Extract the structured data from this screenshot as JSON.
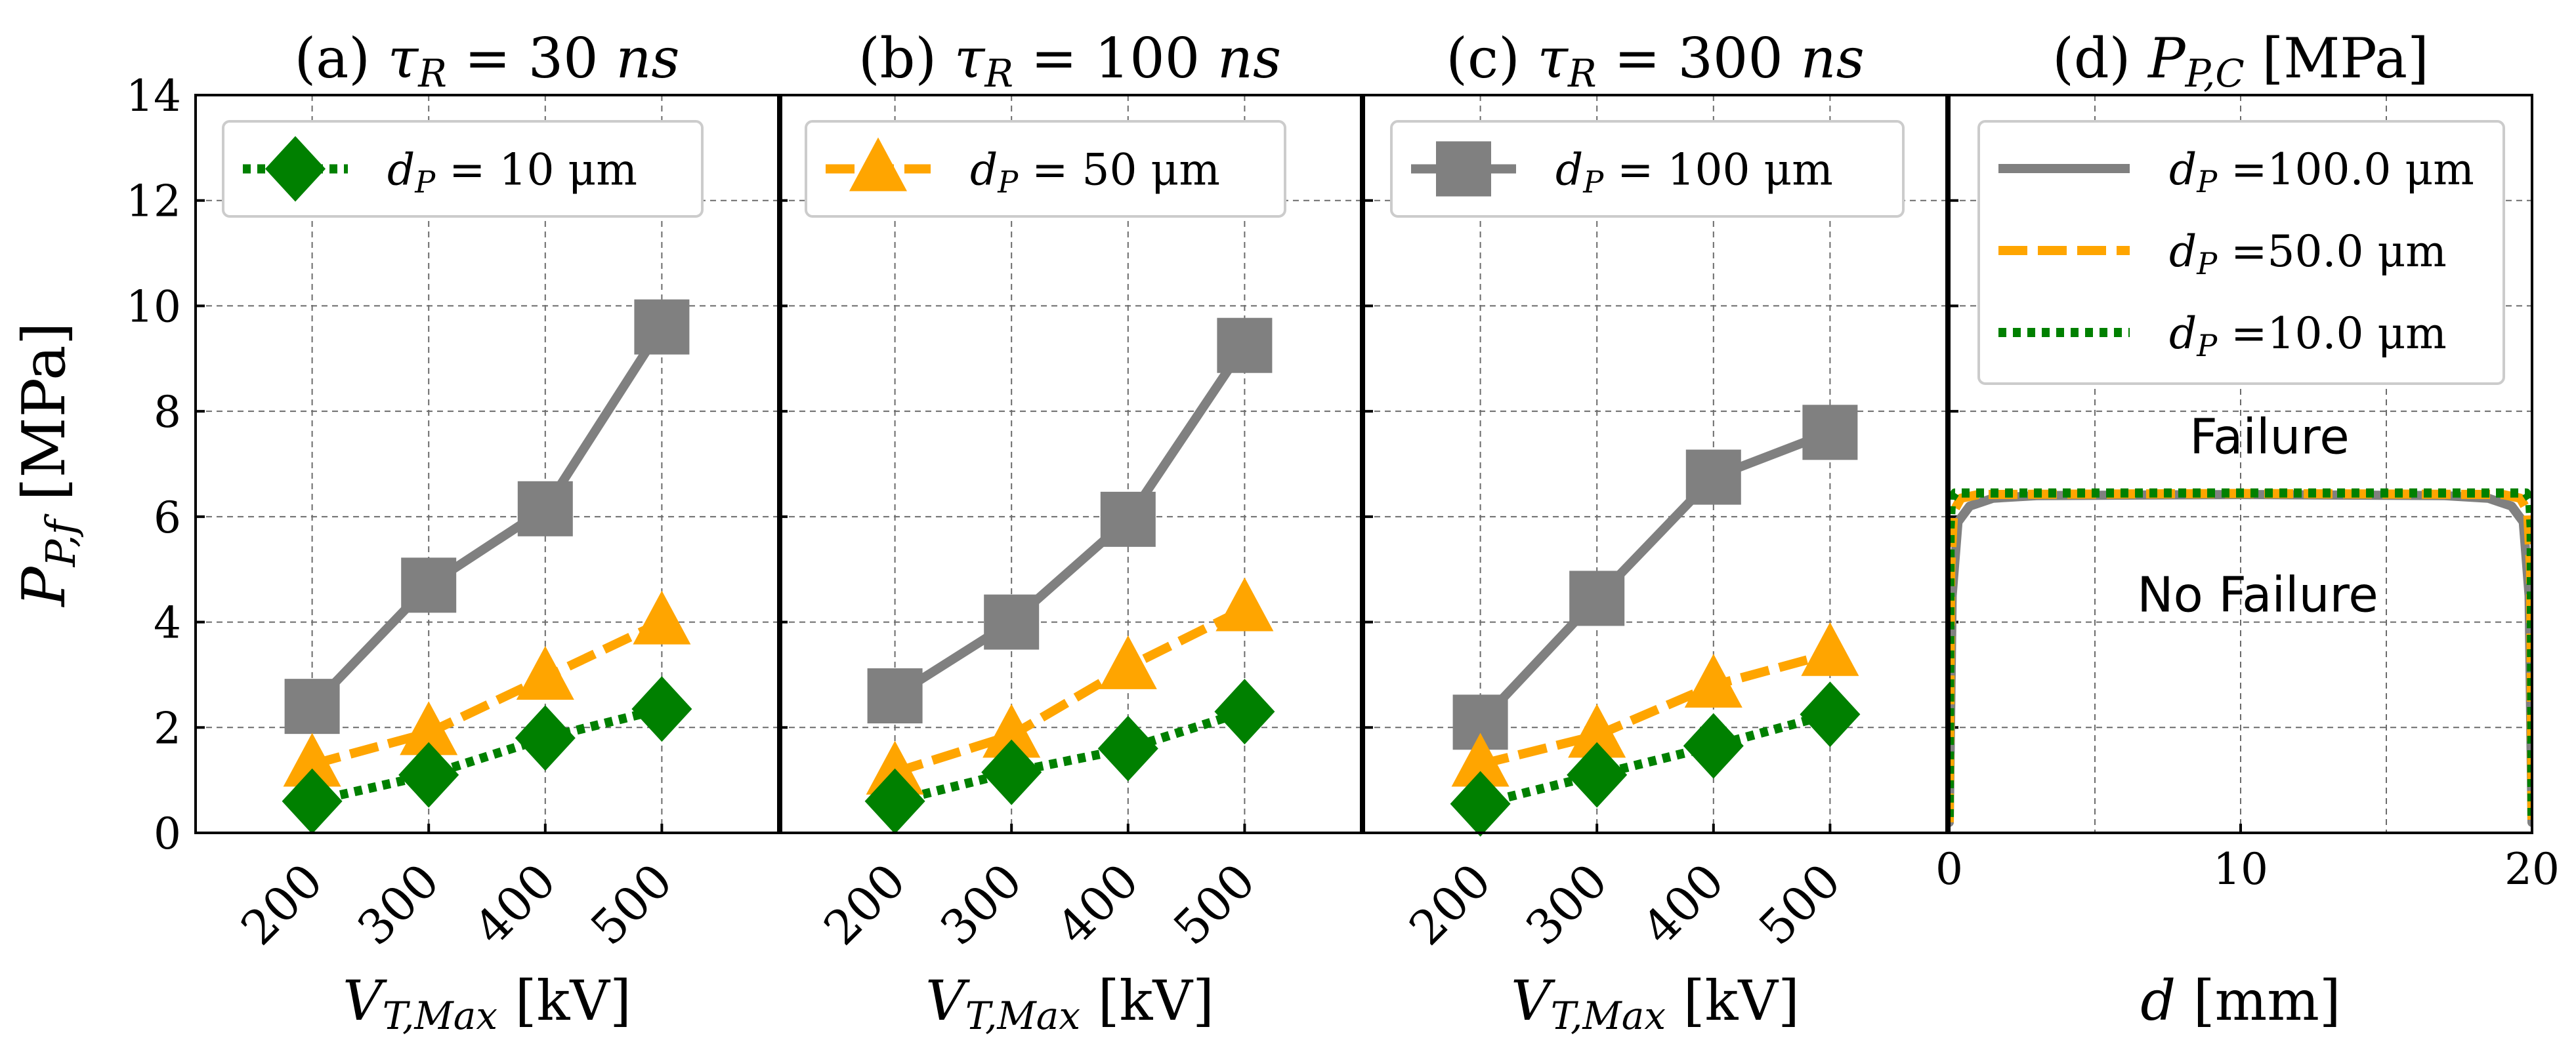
{
  "chart_data": [
    {
      "type": "line",
      "panel": "a",
      "title": "(a) τR = 30 ns",
      "xlabel": "VT,Max [kV]",
      "ylabel": "PP,f [MPa]",
      "categories": [
        "200",
        "300",
        "400",
        "500"
      ],
      "ylim": [
        0,
        14
      ],
      "yticks": [
        "0",
        "2",
        "4",
        "6",
        "8",
        "10",
        "12",
        "14"
      ],
      "grid": true,
      "legend_position": "top-left",
      "legend": [
        "dP = 10 μm"
      ],
      "series": [
        {
          "name": "dP = 100 μm",
          "style": "solid",
          "marker": "square",
          "color": "#808080",
          "values": [
            2.4,
            4.7,
            6.15,
            9.6
          ]
        },
        {
          "name": "dP = 50 μm",
          "style": "dashed",
          "marker": "triangle",
          "color": "#ffa500",
          "values": [
            1.3,
            1.9,
            2.95,
            4.0
          ]
        },
        {
          "name": "dP = 10 μm",
          "style": "dotted",
          "marker": "diamond",
          "color": "#008000",
          "values": [
            0.6,
            1.1,
            1.8,
            2.35
          ]
        }
      ]
    },
    {
      "type": "line",
      "panel": "b",
      "title": "(b) τR = 100 ns",
      "xlabel": "VT,Max [kV]",
      "categories": [
        "200",
        "300",
        "400",
        "500"
      ],
      "ylim": [
        0,
        14
      ],
      "grid": true,
      "legend_position": "top-left",
      "legend": [
        "dP = 50 μm"
      ],
      "series": [
        {
          "name": "dP = 100 μm",
          "style": "solid",
          "marker": "square",
          "color": "#808080",
          "values": [
            2.6,
            4.0,
            5.95,
            9.25
          ]
        },
        {
          "name": "dP = 50 μm",
          "style": "dashed",
          "marker": "triangle",
          "color": "#ffa500",
          "values": [
            1.15,
            1.85,
            3.15,
            4.25
          ]
        },
        {
          "name": "dP = 10 μm",
          "style": "dotted",
          "marker": "diamond",
          "color": "#008000",
          "values": [
            0.6,
            1.15,
            1.6,
            2.3
          ]
        }
      ]
    },
    {
      "type": "line",
      "panel": "c",
      "title": "(c) τR = 300 ns",
      "xlabel": "VT,Max [kV]",
      "categories": [
        "200",
        "300",
        "400",
        "500"
      ],
      "ylim": [
        0,
        14
      ],
      "grid": true,
      "legend_position": "top-left",
      "legend": [
        "dP = 100 μm"
      ],
      "series": [
        {
          "name": "dP = 100 μm",
          "style": "solid",
          "marker": "square",
          "color": "#808080",
          "values": [
            2.1,
            4.45,
            6.75,
            7.6
          ]
        },
        {
          "name": "dP = 50 μm",
          "style": "dashed",
          "marker": "triangle",
          "color": "#ffa500",
          "values": [
            1.3,
            1.85,
            2.8,
            3.4
          ]
        },
        {
          "name": "dP = 10 μm",
          "style": "dotted",
          "marker": "diamond",
          "color": "#008000",
          "values": [
            0.55,
            1.1,
            1.65,
            2.25
          ]
        }
      ]
    },
    {
      "type": "line",
      "panel": "d",
      "title": "(d) PP,C [MPa]",
      "xlabel": "d [mm]",
      "xlim": [
        0,
        20
      ],
      "xticks": [
        "0",
        "10",
        "20"
      ],
      "ylim": [
        0,
        14
      ],
      "grid": true,
      "legend_position": "top-right",
      "legend": [
        "dP =100.0 μm",
        "dP =50.0 μm",
        "dP =10.0 μm"
      ],
      "annotations": [
        "Failure",
        "No Failure"
      ],
      "series": [
        {
          "name": "dP =100.0 μm",
          "style": "solid",
          "color": "#808080",
          "x": [
            0,
            0.1,
            0.3,
            0.7,
            1.5,
            3,
            10,
            17,
            18.5,
            19.3,
            19.7,
            19.9,
            20
          ],
          "y": [
            0.2,
            4.5,
            5.9,
            6.2,
            6.35,
            6.4,
            6.42,
            6.4,
            6.35,
            6.2,
            5.9,
            4.5,
            0.2
          ]
        },
        {
          "name": "dP =50.0 μm",
          "style": "dashed",
          "color": "#ffa500",
          "x": [
            0,
            0.05,
            0.15,
            0.4,
            1,
            10,
            19,
            19.6,
            19.85,
            19.95,
            20
          ],
          "y": [
            0.2,
            5.0,
            6.1,
            6.35,
            6.42,
            6.44,
            6.42,
            6.35,
            6.1,
            5.0,
            0.2
          ]
        },
        {
          "name": "dP =10.0 μm",
          "style": "dotted",
          "color": "#008000",
          "x": [
            0,
            0.03,
            0.08,
            0.2,
            10,
            19.8,
            19.92,
            19.97,
            20
          ],
          "y": [
            0.3,
            5.8,
            6.35,
            6.45,
            6.45,
            6.45,
            6.35,
            5.8,
            0.3
          ]
        }
      ]
    }
  ]
}
